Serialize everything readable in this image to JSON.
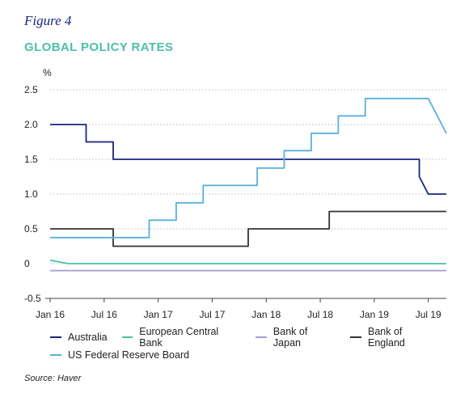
{
  "figure_label": "Figure 4",
  "title": "GLOBAL POLICY RATES",
  "source": "Source: Haver",
  "chart_data": {
    "type": "line",
    "title": "GLOBAL POLICY RATES",
    "ylabel": "%",
    "ylim": [
      -0.5,
      2.5
    ],
    "yticks": [
      {
        "value": 2.5,
        "label": "2.5"
      },
      {
        "value": 2.0,
        "label": "2.0"
      },
      {
        "value": 1.5,
        "label": "1.5"
      },
      {
        "value": 1.0,
        "label": "1.0"
      },
      {
        "value": 0.5,
        "label": "0.5"
      },
      {
        "value": 0,
        "label": "0"
      },
      {
        "value": -0.5,
        "label": "-0.5"
      }
    ],
    "xlim": [
      "2016-01",
      "2019-09"
    ],
    "xticks": [
      {
        "value": "2016-01",
        "label": "Jan 16"
      },
      {
        "value": "2016-07",
        "label": "Jul 16"
      },
      {
        "value": "2017-01",
        "label": "Jan 17"
      },
      {
        "value": "2017-07",
        "label": "Jul 17"
      },
      {
        "value": "2018-01",
        "label": "Jan 18"
      },
      {
        "value": "2018-07",
        "label": "Jul 18"
      },
      {
        "value": "2019-01",
        "label": "Jan 19"
      },
      {
        "value": "2019-07",
        "label": "Jul 19"
      }
    ],
    "grid": "horizontal-dotted",
    "legend_position": "bottom",
    "series": [
      {
        "name": "Australia",
        "color": "#1a237e",
        "points": [
          [
            "2016-01",
            2.0
          ],
          [
            "2016-05",
            2.0
          ],
          [
            "2016-05",
            1.75
          ],
          [
            "2016-08",
            1.75
          ],
          [
            "2016-08",
            1.5
          ],
          [
            "2019-06",
            1.5
          ],
          [
            "2019-06",
            1.25
          ],
          [
            "2019-07",
            1.0
          ],
          [
            "2019-09",
            1.0
          ]
        ]
      },
      {
        "name": "European Central Bank",
        "color": "#4dbfa8",
        "points": [
          [
            "2016-01",
            0.05
          ],
          [
            "2016-03",
            0.0
          ],
          [
            "2019-09",
            0.0
          ]
        ]
      },
      {
        "name": "Bank of Japan",
        "color": "#a99ad6",
        "points": [
          [
            "2016-01",
            -0.1
          ],
          [
            "2019-09",
            -0.1
          ]
        ]
      },
      {
        "name": "Bank of England",
        "color": "#333333",
        "points": [
          [
            "2016-01",
            0.5
          ],
          [
            "2016-08",
            0.5
          ],
          [
            "2016-08",
            0.25
          ],
          [
            "2017-11",
            0.25
          ],
          [
            "2017-11",
            0.5
          ],
          [
            "2018-08",
            0.5
          ],
          [
            "2018-08",
            0.75
          ],
          [
            "2019-09",
            0.75
          ]
        ]
      },
      {
        "name": "US Federal Reserve Board",
        "color": "#5ab0dc",
        "points": [
          [
            "2016-01",
            0.375
          ],
          [
            "2016-12",
            0.375
          ],
          [
            "2016-12",
            0.625
          ],
          [
            "2017-03",
            0.625
          ],
          [
            "2017-03",
            0.875
          ],
          [
            "2017-06",
            0.875
          ],
          [
            "2017-06",
            1.125
          ],
          [
            "2017-12",
            1.125
          ],
          [
            "2017-12",
            1.375
          ],
          [
            "2018-03",
            1.375
          ],
          [
            "2018-03",
            1.625
          ],
          [
            "2018-06",
            1.625
          ],
          [
            "2018-06",
            1.875
          ],
          [
            "2018-09",
            1.875
          ],
          [
            "2018-09",
            2.125
          ],
          [
            "2018-12",
            2.125
          ],
          [
            "2018-12",
            2.375
          ],
          [
            "2019-07",
            2.375
          ],
          [
            "2019-08",
            2.125
          ],
          [
            "2019-09",
            1.875
          ]
        ]
      }
    ]
  }
}
